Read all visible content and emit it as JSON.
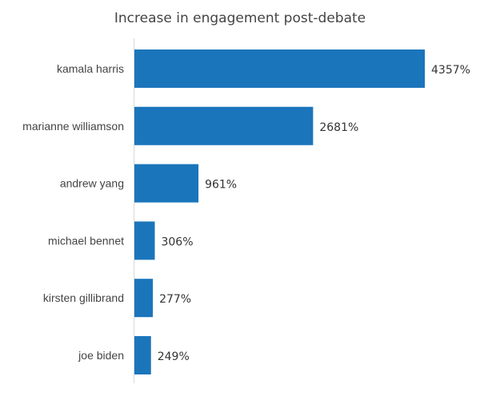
{
  "chart_data": {
    "type": "bar",
    "orientation": "horizontal",
    "title": "Increase in engagement post-debate",
    "categories": [
      "kamala harris",
      "marianne williamson",
      "andrew yang",
      "michael bennet",
      "kirsten gillibrand",
      "joe biden"
    ],
    "values": [
      4357,
      2681,
      961,
      306,
      277,
      249
    ],
    "data_labels": [
      "4357%",
      "2681%",
      "961%",
      "306%",
      "277%",
      "249%"
    ],
    "value_unit": "%",
    "xlim": [
      0,
      4357
    ],
    "grid": false,
    "legend": "none",
    "bar_color": "#1b75bb"
  }
}
